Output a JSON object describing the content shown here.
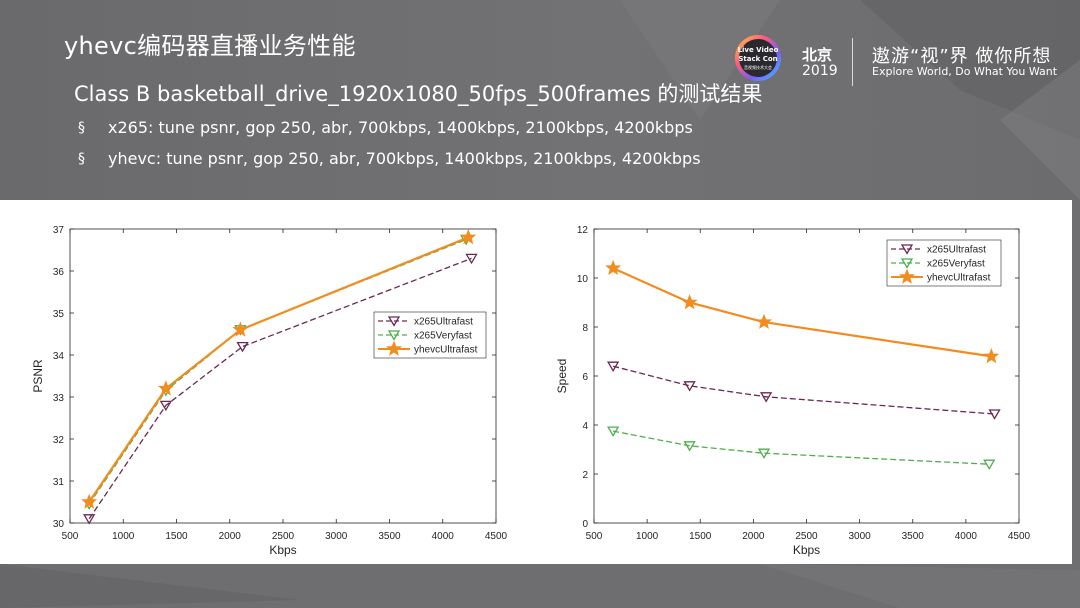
{
  "slide": {
    "title": "yhevc编码器直播业务性能",
    "subtitle": "Class B basketball_drive_1920x1080_50fps_500frames 的测试结果",
    "bullets": [
      {
        "mark": "§",
        "text": "x265: tune psnr, gop 250, abr, 700kbps, 1400kbps, 2100kbps, 4200kbps"
      },
      {
        "mark": "§",
        "text": "yhevc: tune psnr, gop 250, abr, 700kbps, 1400kbps, 2100kbps, 4200kbps"
      }
    ]
  },
  "logo": {
    "badge_lines": [
      "Live Video",
      "Stack Con",
      "音视频技术大会"
    ],
    "city": "北京",
    "year": "2019",
    "slogan_cn": "遨游“视”界 做你所想",
    "slogan_en": "Explore World, Do What You Want"
  },
  "colors": {
    "x265Ultrafast": "#6b2852",
    "x265Veryfast": "#4caf4c",
    "yhevcUltrafast": "#f28c1e"
  },
  "chart_data": [
    {
      "type": "line",
      "xlabel": "Kbps",
      "ylabel": "PSNR",
      "xlim": [
        500,
        4500
      ],
      "ylim": [
        30,
        37
      ],
      "xticks": [
        500,
        1000,
        1500,
        2000,
        2500,
        3000,
        3500,
        4000,
        4500
      ],
      "yticks": [
        30,
        31,
        32,
        33,
        34,
        35,
        36,
        37
      ],
      "legend_position": "center-right",
      "series": [
        {
          "name": "x265Ultrafast",
          "style": "dashed",
          "marker": "triangle-down",
          "x": [
            680,
            1400,
            2120,
            4270
          ],
          "y": [
            30.1,
            32.8,
            34.2,
            36.3
          ]
        },
        {
          "name": "x265Veryfast",
          "style": "dashed",
          "marker": "triangle-down",
          "x": [
            680,
            1400,
            2100,
            4220
          ],
          "y": [
            30.45,
            33.15,
            34.6,
            36.75
          ]
        },
        {
          "name": "yhevcUltrafast",
          "style": "solid",
          "marker": "star",
          "x": [
            680,
            1400,
            2100,
            4240
          ],
          "y": [
            30.5,
            33.2,
            34.6,
            36.8
          ]
        }
      ]
    },
    {
      "type": "line",
      "xlabel": "Kbps",
      "ylabel": "Speed",
      "xlim": [
        500,
        4500
      ],
      "ylim": [
        0,
        12
      ],
      "xticks": [
        500,
        1000,
        1500,
        2000,
        2500,
        3000,
        3500,
        4000,
        4500
      ],
      "yticks": [
        0,
        2,
        4,
        6,
        8,
        10,
        12
      ],
      "legend_position": "top-right",
      "series": [
        {
          "name": "x265Ultrafast",
          "style": "dashed",
          "marker": "triangle-down",
          "x": [
            680,
            1400,
            2120,
            4270
          ],
          "y": [
            6.4,
            5.6,
            5.15,
            4.45
          ]
        },
        {
          "name": "x265Veryfast",
          "style": "dashed",
          "marker": "triangle-down",
          "x": [
            680,
            1400,
            2100,
            4220
          ],
          "y": [
            3.75,
            3.15,
            2.85,
            2.4
          ]
        },
        {
          "name": "yhevcUltrafast",
          "style": "solid",
          "marker": "star",
          "x": [
            680,
            1400,
            2100,
            4240
          ],
          "y": [
            10.4,
            9.0,
            8.2,
            6.8
          ]
        }
      ]
    }
  ]
}
